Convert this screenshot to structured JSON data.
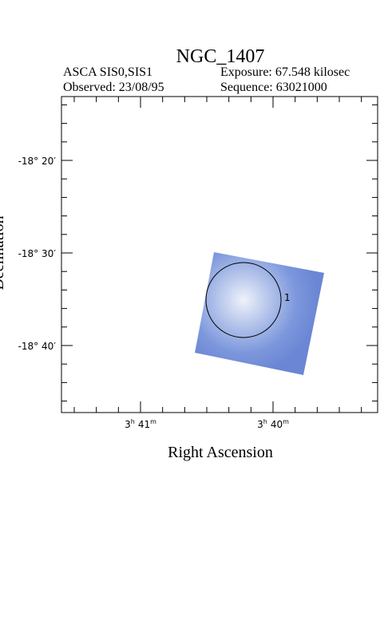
{
  "header": {
    "title": "NGC_1407",
    "instrument": "ASCA SIS0,SIS1",
    "exposure": "Exposure: 67.548 kilosec",
    "observed": "Observed: 23/08/95",
    "sequence": "Sequence: 63021000"
  },
  "plot": {
    "x_label": "Right Ascension",
    "y_label": "Declination",
    "y_ticks": [
      "-18° 20′",
      "-18° 30′",
      "-18° 40′"
    ],
    "x_ticks": [
      {
        "hours": "3",
        "h": "h",
        "minutes": "41",
        "m": "m"
      },
      {
        "hours": "3",
        "h": "h",
        "minutes": "40",
        "m": "m"
      }
    ],
    "region_label": "1"
  }
}
